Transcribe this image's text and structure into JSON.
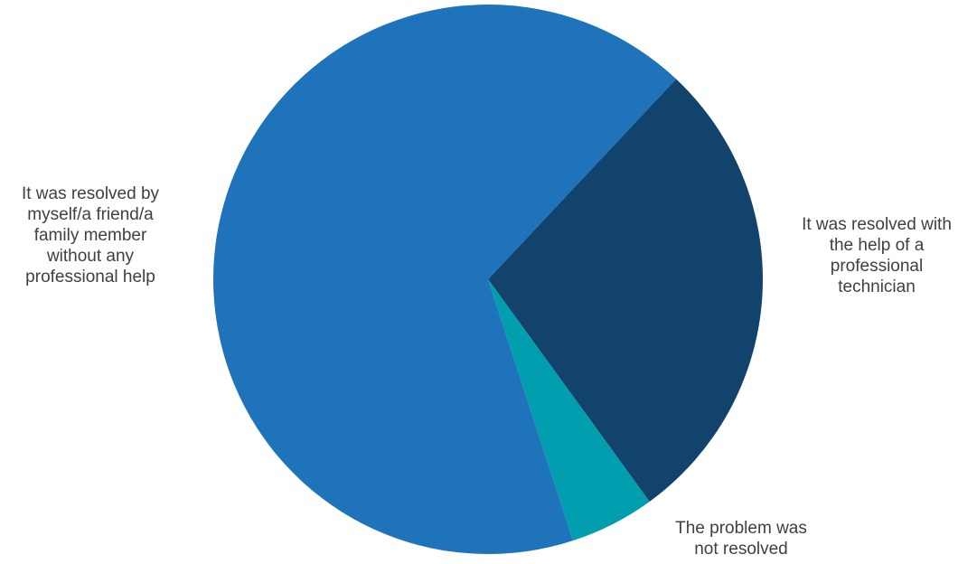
{
  "chart_data": {
    "type": "pie",
    "title": "",
    "slices": [
      {
        "label": "It was resolved with the help of a professional technician",
        "value": 28,
        "color": "#12436D"
      },
      {
        "label": "The problem was not resolved",
        "value": 5,
        "color": "#009EAE"
      },
      {
        "label": "It was resolved by myself/a friend/a family member without any professional help",
        "value": 67,
        "color": "#1F73BA"
      }
    ],
    "label_lines": [
      [
        "It was resolved with",
        "the help of a",
        "professional",
        "technician"
      ],
      [
        "The problem was",
        "not resolved"
      ],
      [
        "It was resolved by",
        "myself/a friend/a",
        "family member",
        "without any",
        "professional help"
      ]
    ],
    "legend": "none"
  }
}
